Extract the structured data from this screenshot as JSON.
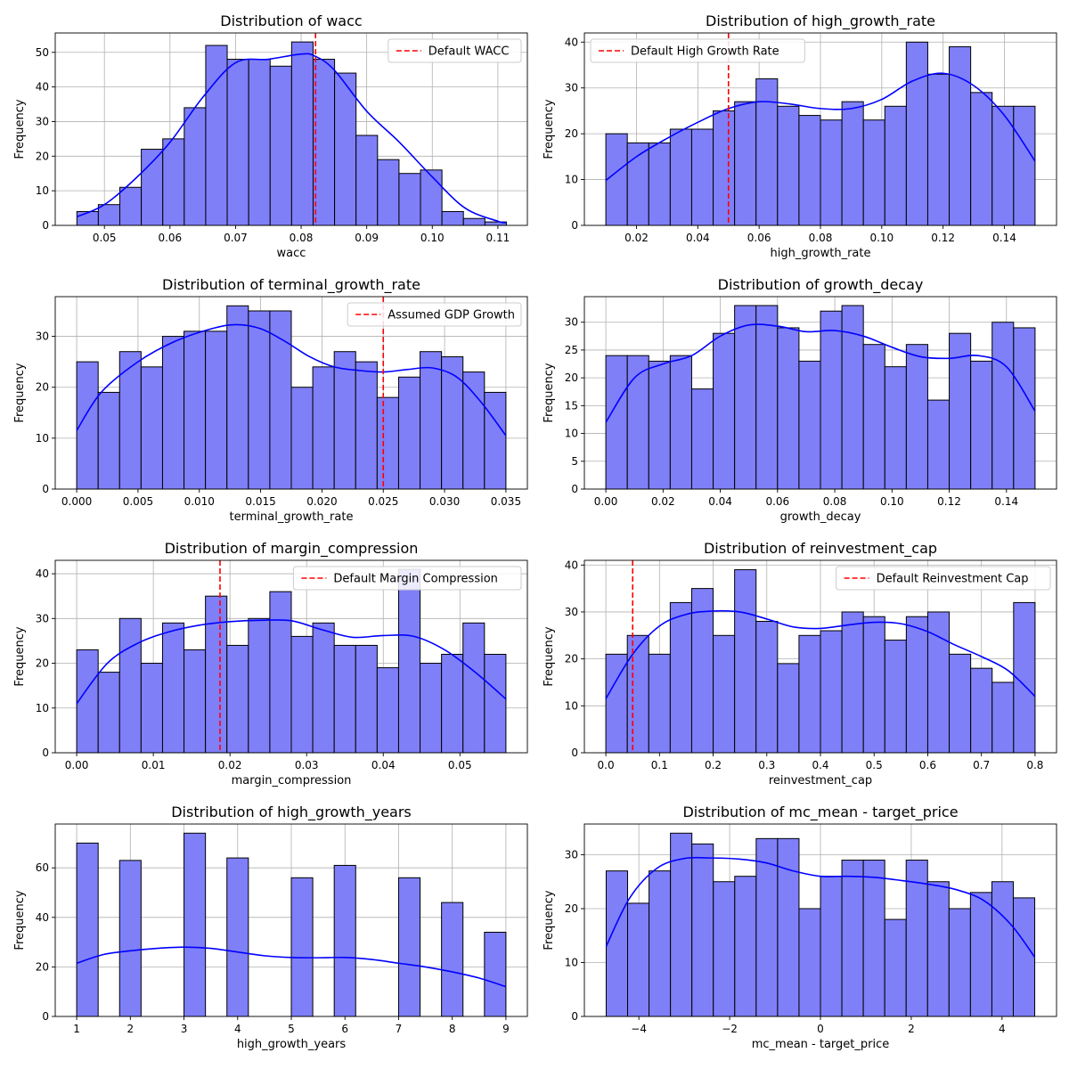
{
  "colors": {
    "bar_fill": "#7f7ff8",
    "bar_edge": "#000000",
    "kde_line": "#0000ff",
    "ref_line": "#ff0000",
    "grid": "#b0b0b0"
  },
  "chart_data": [
    {
      "type": "bar",
      "title": "Distribution of wacc",
      "xlabel": "wacc",
      "ylabel": "Frequency",
      "xlim": [
        0.0425,
        0.1145
      ],
      "ylim": [
        0,
        55.6
      ],
      "xticks": [
        0.05,
        0.06,
        0.07,
        0.08,
        0.09,
        0.1,
        0.11
      ],
      "xtick_labels": [
        "0.05",
        "0.06",
        "0.07",
        "0.08",
        "0.09",
        "0.10",
        "0.11"
      ],
      "yticks": [
        0,
        10,
        20,
        30,
        40,
        50
      ],
      "ytick_labels": [
        "0",
        "10",
        "20",
        "30",
        "40",
        "50"
      ],
      "bins_start": 0.0458,
      "bins_end": 0.1113,
      "values": [
        4,
        6,
        11,
        22,
        25,
        34,
        52,
        48,
        48,
        46,
        53,
        48,
        44,
        26,
        19,
        15,
        16,
        4,
        2,
        1
      ],
      "kde_x": [
        0.0458,
        0.05,
        0.055,
        0.06,
        0.065,
        0.07,
        0.075,
        0.08,
        0.082,
        0.085,
        0.09,
        0.095,
        0.1,
        0.105,
        0.11,
        0.1113
      ],
      "kde_y": [
        2.5,
        6,
        14,
        24,
        37,
        47,
        48,
        49.5,
        49,
        45,
        33,
        24,
        14,
        5,
        1.2,
        0.8
      ],
      "refline": {
        "x": 0.0822,
        "label": "Default WACC",
        "legend_loc": "upper right"
      }
    },
    {
      "type": "bar",
      "title": "Distribution of high_growth_rate",
      "xlabel": "high_growth_rate",
      "ylabel": "Frequency",
      "xlim": [
        0.003,
        0.157
      ],
      "ylim": [
        0,
        42
      ],
      "xticks": [
        0.02,
        0.04,
        0.06,
        0.08,
        0.1,
        0.12,
        0.14
      ],
      "xtick_labels": [
        "0.02",
        "0.04",
        "0.06",
        "0.08",
        "0.10",
        "0.12",
        "0.14"
      ],
      "yticks": [
        0,
        10,
        20,
        30,
        40
      ],
      "ytick_labels": [
        "0",
        "10",
        "20",
        "30",
        "40"
      ],
      "bins_start": 0.01,
      "bins_end": 0.15,
      "values": [
        20,
        18,
        18,
        21,
        21,
        25,
        27,
        32,
        26,
        24,
        23,
        27,
        23,
        26,
        40,
        33,
        39,
        29,
        26,
        26
      ],
      "kde_x": [
        0.01,
        0.02,
        0.03,
        0.04,
        0.05,
        0.06,
        0.07,
        0.08,
        0.09,
        0.1,
        0.11,
        0.12,
        0.13,
        0.14,
        0.15
      ],
      "kde_y": [
        9.8,
        15,
        19,
        22.5,
        25.5,
        27,
        26.5,
        25.5,
        25.5,
        27.5,
        31.5,
        33.2,
        30.5,
        24,
        14
      ],
      "refline": {
        "x": 0.05,
        "label": "Default High Growth Rate",
        "legend_loc": "upper left"
      }
    },
    {
      "type": "bar",
      "title": "Distribution of terminal_growth_rate",
      "xlabel": "terminal_growth_rate",
      "ylabel": "Frequency",
      "xlim": [
        -0.00175,
        0.03675
      ],
      "ylim": [
        0,
        37.8
      ],
      "xticks": [
        0.0,
        0.005,
        0.01,
        0.015,
        0.02,
        0.025,
        0.03,
        0.035
      ],
      "xtick_labels": [
        "0.000",
        "0.005",
        "0.010",
        "0.015",
        "0.020",
        "0.025",
        "0.030",
        "0.035"
      ],
      "yticks": [
        0,
        10,
        20,
        30
      ],
      "ytick_labels": [
        "0",
        "10",
        "20",
        "30"
      ],
      "bins_start": 0.0,
      "bins_end": 0.035,
      "values": [
        25,
        19,
        27,
        24,
        30,
        31,
        31,
        36,
        35,
        35,
        20,
        24,
        27,
        25,
        18,
        22,
        27,
        26,
        23,
        19
      ],
      "kde_x": [
        0.0,
        0.002,
        0.005,
        0.008,
        0.011,
        0.013,
        0.015,
        0.017,
        0.019,
        0.021,
        0.023,
        0.025,
        0.027,
        0.029,
        0.031,
        0.033,
        0.035
      ],
      "kde_y": [
        11.5,
        19,
        25,
        29,
        31.5,
        32.3,
        31.5,
        29,
        26,
        24,
        23.3,
        23,
        23.5,
        23.8,
        22,
        17,
        10.5
      ],
      "refline": {
        "x": 0.025,
        "label": "Assumed GDP Growth",
        "legend_loc": "upper right"
      }
    },
    {
      "type": "bar",
      "title": "Distribution of growth_decay",
      "xlabel": "growth_decay",
      "ylabel": "Frequency",
      "xlim": [
        -0.0075,
        0.1575
      ],
      "ylim": [
        0,
        34.6
      ],
      "xticks": [
        0.0,
        0.02,
        0.04,
        0.06,
        0.08,
        0.1,
        0.12,
        0.14
      ],
      "xtick_labels": [
        "0.00",
        "0.02",
        "0.04",
        "0.06",
        "0.08",
        "0.10",
        "0.12",
        "0.14"
      ],
      "yticks": [
        0,
        5,
        10,
        15,
        20,
        25,
        30
      ],
      "ytick_labels": [
        "0",
        "5",
        "10",
        "15",
        "20",
        "25",
        "30"
      ],
      "bins_start": 0.0,
      "bins_end": 0.15,
      "values": [
        24,
        24,
        23,
        24,
        18,
        28,
        33,
        33,
        29,
        23,
        32,
        33,
        26,
        22,
        26,
        16,
        28,
        23,
        30,
        29
      ],
      "kde_x": [
        0.0,
        0.01,
        0.02,
        0.03,
        0.04,
        0.05,
        0.06,
        0.07,
        0.08,
        0.09,
        0.1,
        0.11,
        0.12,
        0.13,
        0.14,
        0.15
      ],
      "kde_y": [
        12,
        20,
        22.5,
        24,
        27.5,
        29.5,
        29.3,
        28.3,
        28.5,
        27.5,
        25.5,
        23.8,
        23.5,
        24,
        22,
        14
      ],
      "refline": null
    },
    {
      "type": "bar",
      "title": "Distribution of margin_compression",
      "xlabel": "margin_compression",
      "ylabel": "Frequency",
      "xlim": [
        -0.0028,
        0.0588
      ],
      "ylim": [
        0,
        43
      ],
      "xticks": [
        0.0,
        0.01,
        0.02,
        0.03,
        0.04,
        0.05
      ],
      "xtick_labels": [
        "0.00",
        "0.01",
        "0.02",
        "0.03",
        "0.04",
        "0.05"
      ],
      "yticks": [
        0,
        10,
        20,
        30,
        40
      ],
      "ytick_labels": [
        "0",
        "10",
        "20",
        "30",
        "40"
      ],
      "bins_start": 0.0,
      "bins_end": 0.056,
      "values": [
        23,
        18,
        30,
        20,
        29,
        23,
        35,
        24,
        30,
        36,
        26,
        29,
        24,
        24,
        19,
        41,
        20,
        22,
        29,
        22
      ],
      "kde_x": [
        0.0,
        0.004,
        0.008,
        0.012,
        0.016,
        0.02,
        0.024,
        0.028,
        0.032,
        0.036,
        0.04,
        0.044,
        0.048,
        0.052,
        0.056
      ],
      "kde_y": [
        11,
        20,
        24.5,
        27,
        28.5,
        29.3,
        29.6,
        29.5,
        27.5,
        25.8,
        26.2,
        26,
        23,
        18,
        12
      ],
      "refline": {
        "x": 0.0187,
        "label": "Default Margin Compression",
        "legend_loc": "upper right"
      }
    },
    {
      "type": "bar",
      "title": "Distribution of reinvestment_cap",
      "xlabel": "reinvestment_cap",
      "ylabel": "Frequency",
      "xlim": [
        -0.04,
        0.84
      ],
      "ylim": [
        0,
        41
      ],
      "xticks": [
        0.0,
        0.1,
        0.2,
        0.3,
        0.4,
        0.5,
        0.6,
        0.7,
        0.8
      ],
      "xtick_labels": [
        "0.0",
        "0.1",
        "0.2",
        "0.3",
        "0.4",
        "0.5",
        "0.6",
        "0.7",
        "0.8"
      ],
      "yticks": [
        0,
        10,
        20,
        30,
        40
      ],
      "ytick_labels": [
        "0",
        "10",
        "20",
        "30",
        "40"
      ],
      "bins_start": 0.0,
      "bins_end": 0.8,
      "values": [
        21,
        25,
        21,
        32,
        35,
        25,
        39,
        28,
        19,
        25,
        26,
        30,
        29,
        24,
        29,
        30,
        21,
        18,
        15,
        32
      ],
      "kde_x": [
        0.0,
        0.05,
        0.1,
        0.15,
        0.2,
        0.25,
        0.3,
        0.35,
        0.4,
        0.45,
        0.5,
        0.55,
        0.6,
        0.65,
        0.7,
        0.75,
        0.8
      ],
      "kde_y": [
        11.5,
        21,
        27,
        29.5,
        30.2,
        30,
        28.5,
        26.8,
        26.5,
        27.2,
        27.8,
        27.5,
        25.8,
        23,
        20.5,
        17.5,
        12
      ],
      "refline": {
        "x": 0.05,
        "label": "Default Reinvestment Cap",
        "legend_loc": "upper right"
      }
    },
    {
      "type": "bar",
      "title": "Distribution of high_growth_years",
      "xlabel": "high_growth_years",
      "ylabel": "Frequency",
      "xlim": [
        0.6,
        9.4
      ],
      "ylim": [
        0,
        77.7
      ],
      "xticks": [
        1,
        2,
        3,
        4,
        5,
        6,
        7,
        8,
        9
      ],
      "xtick_labels": [
        "1",
        "2",
        "3",
        "4",
        "5",
        "6",
        "7",
        "8",
        "9"
      ],
      "yticks": [
        0,
        20,
        40,
        60
      ],
      "ytick_labels": [
        "0",
        "20",
        "40",
        "60"
      ],
      "bins_start": 1,
      "bins_end": 9,
      "values": [
        70,
        0,
        63,
        0,
        0,
        74,
        0,
        64,
        0,
        0,
        56,
        0,
        61,
        0,
        0,
        56,
        0,
        46,
        0,
        34
      ],
      "kde_x": [
        1,
        1.5,
        2,
        2.5,
        3,
        3.5,
        4,
        4.5,
        5,
        5.5,
        6,
        6.5,
        7,
        7.5,
        8,
        8.5,
        9
      ],
      "kde_y": [
        21.5,
        25,
        26.5,
        27.5,
        28,
        27.5,
        26,
        24.5,
        23.8,
        23.7,
        23.8,
        23,
        21.5,
        20,
        18,
        15.5,
        12
      ],
      "refline": null
    },
    {
      "type": "bar",
      "title": "Distribution of mc_mean - target_price",
      "xlabel": "mc_mean - target_price",
      "ylabel": "Frequency",
      "xlim": [
        -5.2,
        5.2
      ],
      "ylim": [
        0,
        35.7
      ],
      "xticks": [
        -4,
        -2,
        0,
        2,
        4
      ],
      "xtick_labels": [
        "−4",
        "−2",
        "0",
        "2",
        "4"
      ],
      "yticks": [
        0,
        10,
        20,
        30
      ],
      "ytick_labels": [
        "0",
        "10",
        "20",
        "30"
      ],
      "bins_start": -4.72,
      "bins_end": 4.72,
      "values": [
        27,
        21,
        27,
        34,
        32,
        25,
        26,
        33,
        33,
        20,
        26,
        29,
        29,
        18,
        29,
        25,
        20,
        23,
        25,
        22
      ],
      "kde_x": [
        -4.72,
        -4.2,
        -3.6,
        -3.0,
        -2.4,
        -1.8,
        -1.2,
        -0.6,
        0.0,
        0.6,
        1.2,
        1.8,
        2.4,
        3.0,
        3.6,
        4.2,
        4.72
      ],
      "kde_y": [
        13,
        22,
        27.5,
        29.3,
        29.4,
        29.2,
        28.5,
        27,
        26,
        26,
        25.8,
        25.2,
        24.5,
        23.5,
        21.5,
        17,
        11
      ],
      "refline": null
    }
  ]
}
